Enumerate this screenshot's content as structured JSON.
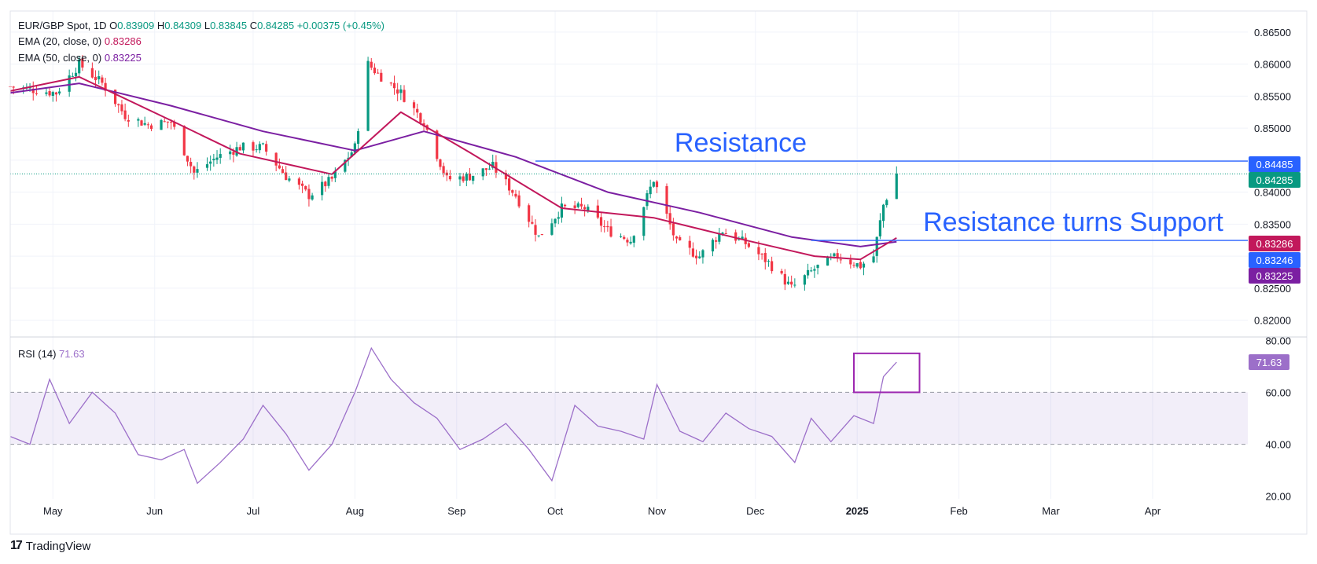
{
  "header": {
    "symbol": "EUR/GBP Spot, 1D",
    "ohlc": [
      {
        "key": "O",
        "value": "0.83909"
      },
      {
        "key": "H",
        "value": "0.84309"
      },
      {
        "key": "L",
        "value": "0.83845"
      },
      {
        "key": "C",
        "value": "0.84285"
      }
    ],
    "change": "+0.00375 (+0.45%)"
  },
  "indicators": {
    "ema20": {
      "label": "EMA (20, close, 0)",
      "value": "0.83286"
    },
    "ema50": {
      "label": "EMA (50, close, 0)",
      "value": "0.83225"
    },
    "rsi": {
      "label": "RSI (14)",
      "value": "71.63"
    }
  },
  "brand": {
    "name": "TradingView"
  },
  "colors": {
    "up": "#089981",
    "down": "#f23645",
    "ema20": "#c2185b",
    "ema50": "#7b1fa2",
    "rsi": "#9c6fc9",
    "annotation": "#2962ff",
    "last_price": "#089981"
  },
  "chart_data": [
    {
      "type": "candlestick",
      "title": "EUR/GBP Spot, 1D",
      "y_axis_ticks": [
        "0.82000",
        "0.82500",
        "0.83000",
        "0.83500",
        "0.84000",
        "0.84500",
        "0.85000",
        "0.85500",
        "0.86000",
        "0.86500"
      ],
      "ylim": [
        0.8175,
        0.8683
      ],
      "x_axis_ticks": [
        "May",
        "Jun",
        "Jul",
        "Aug",
        "Sep",
        "Oct",
        "Nov",
        "Dec",
        "2025",
        "Feb",
        "Mar",
        "Apr"
      ],
      "x_range": [
        "2024-04-18",
        "2025-04-30"
      ],
      "close_series": [
        {
          "date": "2024-04-18",
          "close": 0.8565
        },
        {
          "date": "2024-04-25",
          "close": 0.856
        },
        {
          "date": "2024-05-02",
          "close": 0.8555
        },
        {
          "date": "2024-05-09",
          "close": 0.86
        },
        {
          "date": "2024-05-16",
          "close": 0.857
        },
        {
          "date": "2024-05-23",
          "close": 0.852
        },
        {
          "date": "2024-05-30",
          "close": 0.8505
        },
        {
          "date": "2024-06-06",
          "close": 0.851
        },
        {
          "date": "2024-06-13",
          "close": 0.843
        },
        {
          "date": "2024-06-20",
          "close": 0.8455
        },
        {
          "date": "2024-06-27",
          "close": 0.847
        },
        {
          "date": "2024-07-04",
          "close": 0.847
        },
        {
          "date": "2024-07-11",
          "close": 0.8425
        },
        {
          "date": "2024-07-18",
          "close": 0.8395
        },
        {
          "date": "2024-07-25",
          "close": 0.842
        },
        {
          "date": "2024-08-01",
          "close": 0.847
        },
        {
          "date": "2024-08-05",
          "close": 0.86
        },
        {
          "date": "2024-08-08",
          "close": 0.8585
        },
        {
          "date": "2024-08-15",
          "close": 0.8555
        },
        {
          "date": "2024-08-22",
          "close": 0.851
        },
        {
          "date": "2024-08-29",
          "close": 0.842
        },
        {
          "date": "2024-09-05",
          "close": 0.8425
        },
        {
          "date": "2024-09-12",
          "close": 0.844
        },
        {
          "date": "2024-09-19",
          "close": 0.8395
        },
        {
          "date": "2024-09-26",
          "close": 0.833
        },
        {
          "date": "2024-10-03",
          "close": 0.8375
        },
        {
          "date": "2024-10-10",
          "close": 0.8375
        },
        {
          "date": "2024-10-17",
          "close": 0.834
        },
        {
          "date": "2024-10-24",
          "close": 0.8325
        },
        {
          "date": "2024-10-31",
          "close": 0.842
        },
        {
          "date": "2024-11-07",
          "close": 0.832
        },
        {
          "date": "2024-11-14",
          "close": 0.83
        },
        {
          "date": "2024-11-21",
          "close": 0.834
        },
        {
          "date": "2024-11-28",
          "close": 0.832
        },
        {
          "date": "2024-12-05",
          "close": 0.829
        },
        {
          "date": "2024-12-12",
          "close": 0.825
        },
        {
          "date": "2024-12-19",
          "close": 0.828
        },
        {
          "date": "2024-12-26",
          "close": 0.83
        },
        {
          "date": "2025-01-02",
          "close": 0.8285
        },
        {
          "date": "2025-01-06",
          "close": 0.83
        },
        {
          "date": "2025-01-09",
          "close": 0.838
        },
        {
          "date": "2025-01-13",
          "close": 0.84285
        }
      ],
      "ema20_series": [
        {
          "date": "2024-04-18",
          "value": 0.8558
        },
        {
          "date": "2024-05-09",
          "value": 0.858
        },
        {
          "date": "2024-06-06",
          "value": 0.8512
        },
        {
          "date": "2024-06-27",
          "value": 0.846
        },
        {
          "date": "2024-07-25",
          "value": 0.8428
        },
        {
          "date": "2024-08-15",
          "value": 0.8525
        },
        {
          "date": "2024-09-05",
          "value": 0.8462
        },
        {
          "date": "2024-10-03",
          "value": 0.8375
        },
        {
          "date": "2024-10-31",
          "value": 0.836
        },
        {
          "date": "2024-11-28",
          "value": 0.8325
        },
        {
          "date": "2024-12-19",
          "value": 0.83
        },
        {
          "date": "2025-01-02",
          "value": 0.8295
        },
        {
          "date": "2025-01-13",
          "value": 0.83286
        }
      ],
      "ema50_series": [
        {
          "date": "2024-04-18",
          "value": 0.8555
        },
        {
          "date": "2024-05-09",
          "value": 0.857
        },
        {
          "date": "2024-06-06",
          "value": 0.8535
        },
        {
          "date": "2024-07-04",
          "value": 0.8495
        },
        {
          "date": "2024-08-01",
          "value": 0.8465
        },
        {
          "date": "2024-08-22",
          "value": 0.8495
        },
        {
          "date": "2024-09-19",
          "value": 0.8455
        },
        {
          "date": "2024-10-17",
          "value": 0.84
        },
        {
          "date": "2024-11-14",
          "value": 0.8368
        },
        {
          "date": "2024-12-12",
          "value": 0.833
        },
        {
          "date": "2025-01-02",
          "value": 0.8315
        },
        {
          "date": "2025-01-13",
          "value": 0.83225
        }
      ],
      "horizontal_lines": [
        {
          "label": "Resistance",
          "value": 0.84485
        },
        {
          "label": "Resistance turns Support",
          "value": 0.83246
        }
      ],
      "price_labels": [
        {
          "value": "0.84485",
          "color": "#2962ff"
        },
        {
          "value": "0.84285",
          "color": "#089981"
        },
        {
          "value": "0.83286",
          "color": "#c2185b"
        },
        {
          "value": "0.83246",
          "color": "#2962ff"
        },
        {
          "value": "0.83225",
          "color": "#7b1fa2"
        }
      ],
      "grid": true
    },
    {
      "type": "line",
      "title": "RSI (14)",
      "y_axis_ticks": [
        "20.00",
        "40.00",
        "60.00",
        "80.00"
      ],
      "ylim": [
        19,
        81
      ],
      "band": [
        40,
        60
      ],
      "x_range": [
        "2024-04-18",
        "2025-04-30"
      ],
      "rsi_series": [
        {
          "date": "2024-04-18",
          "value": 43
        },
        {
          "date": "2024-04-24",
          "value": 40
        },
        {
          "date": "2024-04-30",
          "value": 65
        },
        {
          "date": "2024-05-06",
          "value": 48
        },
        {
          "date": "2024-05-13",
          "value": 60
        },
        {
          "date": "2024-05-20",
          "value": 52
        },
        {
          "date": "2024-05-27",
          "value": 36
        },
        {
          "date": "2024-06-03",
          "value": 34
        },
        {
          "date": "2024-06-10",
          "value": 38
        },
        {
          "date": "2024-06-14",
          "value": 25
        },
        {
          "date": "2024-06-21",
          "value": 33
        },
        {
          "date": "2024-06-28",
          "value": 42
        },
        {
          "date": "2024-07-04",
          "value": 55
        },
        {
          "date": "2024-07-11",
          "value": 44
        },
        {
          "date": "2024-07-18",
          "value": 30
        },
        {
          "date": "2024-07-25",
          "value": 40
        },
        {
          "date": "2024-08-01",
          "value": 60
        },
        {
          "date": "2024-08-06",
          "value": 77
        },
        {
          "date": "2024-08-12",
          "value": 65
        },
        {
          "date": "2024-08-19",
          "value": 56
        },
        {
          "date": "2024-08-26",
          "value": 50
        },
        {
          "date": "2024-09-02",
          "value": 38
        },
        {
          "date": "2024-09-09",
          "value": 42
        },
        {
          "date": "2024-09-16",
          "value": 48
        },
        {
          "date": "2024-09-23",
          "value": 38
        },
        {
          "date": "2024-09-30",
          "value": 26
        },
        {
          "date": "2024-10-07",
          "value": 55
        },
        {
          "date": "2024-10-14",
          "value": 47
        },
        {
          "date": "2024-10-21",
          "value": 45
        },
        {
          "date": "2024-10-28",
          "value": 42
        },
        {
          "date": "2024-11-01",
          "value": 63
        },
        {
          "date": "2024-11-08",
          "value": 45
        },
        {
          "date": "2024-11-15",
          "value": 41
        },
        {
          "date": "2024-11-22",
          "value": 52
        },
        {
          "date": "2024-11-29",
          "value": 46
        },
        {
          "date": "2024-12-06",
          "value": 43
        },
        {
          "date": "2024-12-13",
          "value": 33
        },
        {
          "date": "2024-12-18",
          "value": 50
        },
        {
          "date": "2024-12-24",
          "value": 41
        },
        {
          "date": "2024-12-31",
          "value": 51
        },
        {
          "date": "2025-01-06",
          "value": 48
        },
        {
          "date": "2025-01-09",
          "value": 66
        },
        {
          "date": "2025-01-13",
          "value": 71.63
        }
      ],
      "highlight_box": {
        "from": "2024-12-31",
        "to": "2025-01-20",
        "y_from": 60,
        "y_to": 75
      }
    }
  ]
}
